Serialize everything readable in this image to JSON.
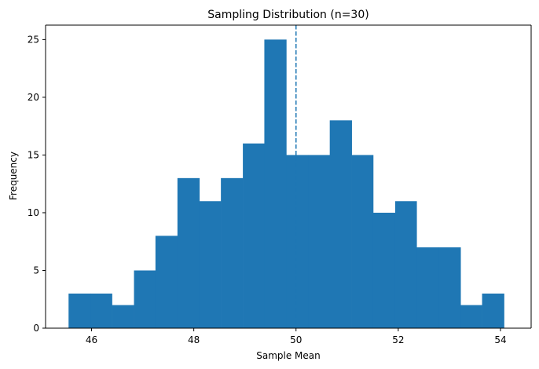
{
  "chart_data": {
    "type": "histogram",
    "title": "Sampling Distribution (n=30)",
    "xlabel": "Sample Mean",
    "ylabel": "Frequency",
    "xlim": [
      45.1,
      54.6
    ],
    "ylim": [
      0,
      26.25
    ],
    "x_ticks": [
      46,
      48,
      50,
      52,
      54
    ],
    "y_ticks": [
      0,
      5,
      10,
      15,
      20,
      25
    ],
    "bin_edges": [
      45.55,
      45.98,
      46.4,
      46.83,
      47.25,
      47.68,
      48.11,
      48.53,
      48.96,
      49.38,
      49.81,
      50.24,
      50.66,
      51.09,
      51.51,
      51.94,
      52.36,
      52.79,
      53.22,
      53.64,
      54.07
    ],
    "counts": [
      3,
      3,
      2,
      5,
      8,
      13,
      11,
      13,
      16,
      25,
      15,
      15,
      18,
      15,
      10,
      11,
      7,
      7,
      2,
      3
    ],
    "bar_color": "#1f77b4",
    "reference_line": {
      "x": 50,
      "style": "dashed",
      "color": "#1f77b4"
    }
  }
}
